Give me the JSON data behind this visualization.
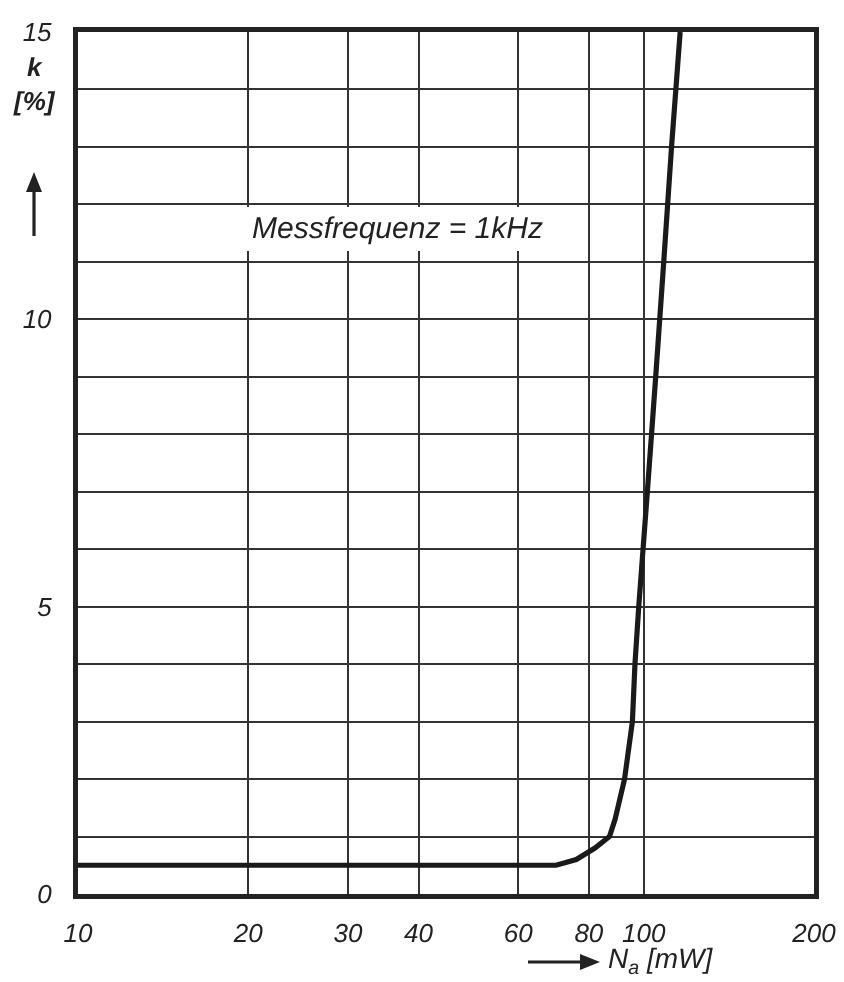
{
  "chart_data": {
    "type": "line",
    "xlabel": "N$_{a}$ [mW]",
    "ylabel": "k [%]",
    "annotations": [
      "Messfrequenz = 1kHz"
    ],
    "x": [
      10,
      40,
      70,
      76,
      82,
      87,
      89,
      92.5,
      95.5,
      96.5,
      98,
      101.5,
      105,
      108.5,
      112,
      116
    ],
    "series": [
      {
        "color": "#1a1a1a",
        "values": [
          0.5,
          0.5,
          0.5,
          0.6,
          0.8,
          1,
          1.3,
          2,
          3,
          4,
          5,
          7,
          9,
          11,
          13,
          15
        ]
      }
    ],
    "xlim": [
      10,
      200
    ],
    "ylim": [
      0,
      15
    ],
    "xticks": [
      10,
      20,
      30,
      40,
      60,
      80,
      100,
      200
    ],
    "yticks": [
      0,
      {
        "value": 1,
        "label": null
      },
      {
        "value": 2,
        "label": null
      },
      {
        "value": 3,
        "label": null
      },
      {
        "value": 4,
        "label": null
      },
      5,
      {
        "value": 6,
        "label": null
      },
      {
        "value": 7,
        "label": null
      },
      {
        "value": 8,
        "label": null
      },
      {
        "value": 9,
        "label": null
      },
      10,
      {
        "value": 11,
        "label": null
      },
      {
        "value": 12,
        "label": null
      },
      {
        "value": 13,
        "label": null
      },
      {
        "value": 14,
        "label": null
      },
      15
    ],
    "log": "x",
    "grid": true,
    "marker": "none",
    "line_style": "solid"
  }
}
